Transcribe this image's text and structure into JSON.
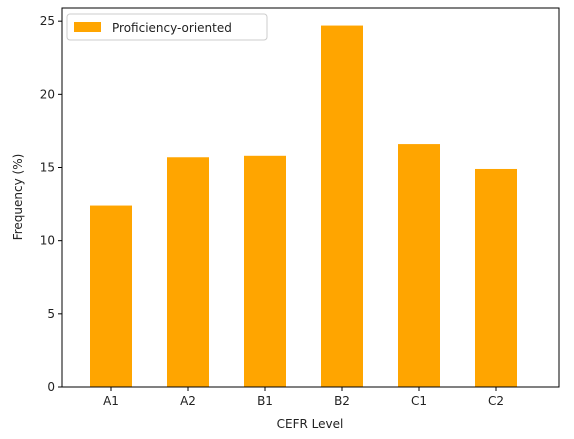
{
  "chart_data": {
    "type": "bar",
    "categories": [
      "A1",
      "A2",
      "B1",
      "B2",
      "C1",
      "C2"
    ],
    "series": [
      {
        "name": "Proficiency-oriented",
        "color": "orange",
        "values": [
          12.4,
          15.7,
          15.8,
          24.7,
          16.6,
          14.9
        ]
      }
    ],
    "xlabel": "CEFR Level",
    "ylabel": "Frequency (%)",
    "ylim": [
      0,
      25.9
    ],
    "yticks": [
      0,
      5,
      10,
      15,
      20,
      25
    ],
    "legend": "upper left"
  }
}
